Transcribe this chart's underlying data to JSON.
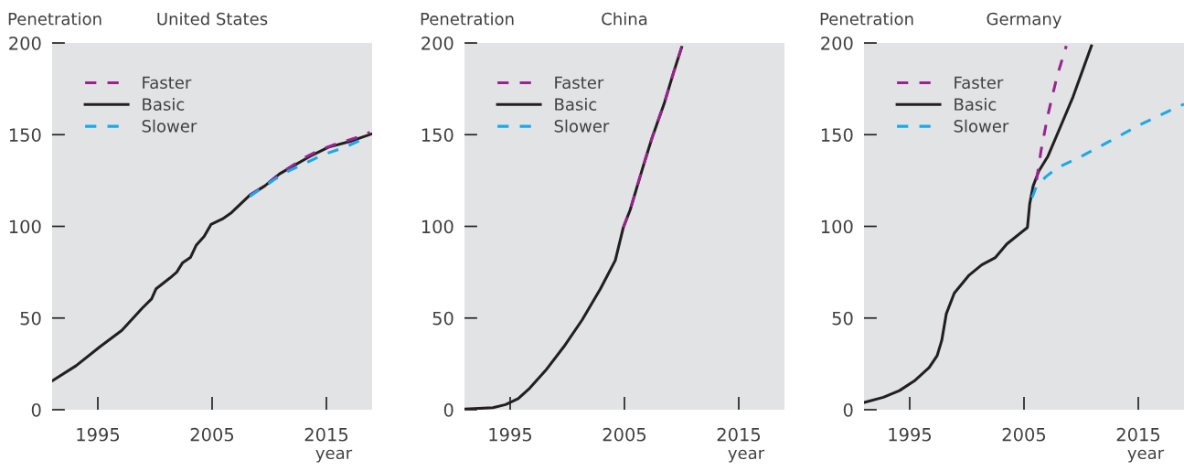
{
  "chart_data": [
    {
      "type": "line",
      "title": "United States",
      "ylabel": "Penetration",
      "xlabel": "year",
      "xlim": [
        1991,
        2019
      ],
      "ylim": [
        0,
        200
      ],
      "xticks": [
        1995,
        2005,
        2015
      ],
      "yticks": [
        0,
        50,
        100,
        150,
        200
      ],
      "grid": false,
      "legend": "top left",
      "series": [
        {
          "name": "Faster",
          "color": "#9b2390",
          "line_style": "dashed",
          "x": [
            2008.3,
            2009.6,
            2010.9,
            2011.5,
            2013.1,
            2014.4,
            2015.8,
            2017.9,
            2018.8
          ],
          "values": [
            117,
            122,
            128.6,
            131,
            137.5,
            141.6,
            144.8,
            148.9,
            151.3
          ]
        },
        {
          "name": "Basic",
          "color": "#231f20",
          "line_style": "solid",
          "x": [
            1991,
            1993.1,
            1995.2,
            1997.1,
            1998.9,
            1999.7,
            2000.1,
            2001.3,
            2001.9,
            2002.4,
            2003.1,
            2003.6,
            2004.3,
            2004.9,
            2005.9,
            2006.7,
            2007.5,
            2008.3,
            2009.6,
            2010.9,
            2012.0,
            2013.6,
            2015.2,
            2017.1,
            2019
          ],
          "values": [
            15.7,
            24,
            34.4,
            43.3,
            55.5,
            60.4,
            66,
            71.8,
            75,
            80,
            83,
            89.6,
            94.5,
            101,
            104,
            107.5,
            112.3,
            117,
            122,
            128.6,
            132.6,
            138.3,
            143.2,
            146.4,
            150.5
          ]
        },
        {
          "name": "Slower",
          "color": "#1aa9e8",
          "line_style": "dashed",
          "x": [
            2008.3,
            2010.4,
            2011.7,
            2013.1,
            2014.7,
            2016.3,
            2018.1
          ],
          "values": [
            116.4,
            125.3,
            130.2,
            134.3,
            139.1,
            142.4,
            147.2
          ]
        }
      ]
    },
    {
      "type": "line",
      "title": "China",
      "ylabel": "Penetration",
      "xlabel": "year",
      "xlim": [
        1991,
        2019
      ],
      "ylim": [
        0,
        200
      ],
      "xticks": [
        1995,
        2005,
        2015
      ],
      "yticks": [
        0,
        50,
        100,
        150,
        200
      ],
      "grid": false,
      "legend": "top left",
      "series": [
        {
          "name": "Faster",
          "color": "#9b2390",
          "line_style": "dashed",
          "x": [
            2004.9,
            2005.5,
            2006.6,
            2007.4,
            2008.5,
            2009.3,
            2010
          ],
          "values": [
            99.4,
            109,
            132,
            148,
            167.5,
            184,
            197.6
          ]
        },
        {
          "name": "Basic",
          "color": "#231f20",
          "line_style": "solid",
          "x": [
            1991,
            1993.5,
            1994.6,
            1995.7,
            1996.7,
            1998.1,
            1999.7,
            2001.3,
            2002.9,
            2004.2,
            2004.9,
            2005.5,
            2006.6,
            2007.4,
            2008.5,
            2009.3,
            2010
          ],
          "values": [
            0.3,
            1.1,
            2.8,
            6,
            11.7,
            21.4,
            34.4,
            49,
            66,
            81.5,
            99.4,
            109,
            132,
            148,
            167.5,
            184,
            197.6
          ]
        },
        {
          "name": "Slower",
          "color": "#1aa9e8",
          "line_style": "dashed"
        }
      ]
    },
    {
      "type": "line",
      "title": "Germany",
      "ylabel": "Penetration",
      "xlabel": "year",
      "xlim": [
        1991,
        2019
      ],
      "ylim": [
        0,
        200
      ],
      "xticks": [
        1995,
        2005,
        2015
      ],
      "yticks": [
        0,
        50,
        100,
        150,
        200
      ],
      "grid": false,
      "legend": "top left",
      "series": [
        {
          "name": "Faster",
          "color": "#9b2390",
          "line_style": "dashed",
          "x": [
            2006.1,
            2006.5,
            2007.1,
            2007.9,
            2008.7
          ],
          "values": [
            125.3,
            141.6,
            161,
            182,
            198.4
          ]
        },
        {
          "name": "Basic",
          "color": "#231f20",
          "line_style": "solid",
          "x": [
            1991,
            1992.7,
            1994.1,
            1995.4,
            1996.7,
            1997.4,
            1997.8,
            1998.2,
            1998.9,
            2000.2,
            2001.3,
            2002.5,
            2003.5,
            2005.3,
            2005.5,
            2005.8,
            2006.3,
            2007.1,
            2008.2,
            2009.3,
            2010.9
          ],
          "values": [
            3.9,
            6.8,
            10.4,
            15.7,
            23,
            29.5,
            37.7,
            52.3,
            63.6,
            73.4,
            79,
            83,
            90.4,
            99.4,
            112.3,
            122,
            130.2,
            138.3,
            154.5,
            170.8,
            198.4
          ]
        },
        {
          "name": "Slower",
          "color": "#1aa9e8",
          "line_style": "dashed",
          "x": [
            2005.7,
            2006.1,
            2006.9,
            2007.9,
            2009.8,
            2012.5,
            2015.1,
            2019
          ],
          "values": [
            115.6,
            122,
            127,
            131.8,
            137.5,
            146.4,
            155.3,
            166.7
          ]
        }
      ]
    }
  ]
}
